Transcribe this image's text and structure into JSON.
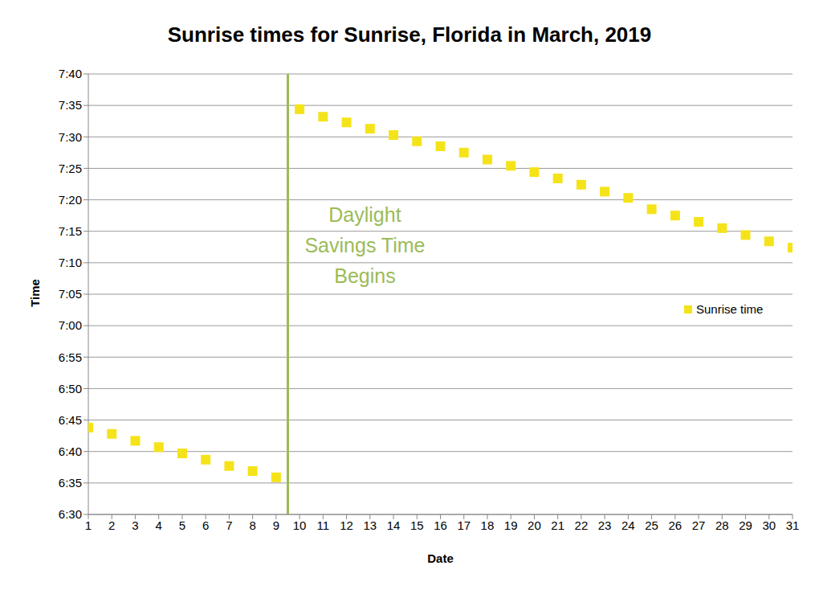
{
  "chart_data": {
    "type": "scatter",
    "title": "Sunrise times for Sunrise, Florida in March, 2019",
    "x_label": "Date",
    "y_label": "Time",
    "x": [
      1,
      2,
      3,
      4,
      5,
      6,
      7,
      8,
      9,
      10,
      11,
      12,
      13,
      14,
      15,
      16,
      17,
      18,
      19,
      20,
      21,
      22,
      23,
      24,
      25,
      26,
      27,
      28,
      29,
      30,
      31
    ],
    "series": [
      {
        "name": "Sunrise time",
        "color": "#f5e31a",
        "marker": "square",
        "values": [
          403.8,
          402.8,
          401.7,
          400.7,
          399.7,
          398.7,
          397.7,
          396.9,
          395.9,
          454.4,
          453.2,
          452.3,
          451.3,
          450.3,
          449.3,
          448.5,
          447.5,
          446.4,
          445.4,
          444.4,
          443.4,
          442.4,
          441.3,
          440.3,
          438.5,
          437.5,
          436.5,
          435.5,
          434.4,
          433.4,
          432.4
        ]
      }
    ],
    "xlim": [
      1,
      31
    ],
    "xticks": [
      1,
      2,
      3,
      4,
      5,
      6,
      7,
      8,
      9,
      10,
      11,
      12,
      13,
      14,
      15,
      16,
      17,
      18,
      19,
      20,
      21,
      22,
      23,
      24,
      25,
      26,
      27,
      28,
      29,
      30,
      31
    ],
    "ylim": [
      390,
      460
    ],
    "yticks": [
      {
        "value": 390,
        "label": "6:30"
      },
      {
        "value": 395,
        "label": "6:35"
      },
      {
        "value": 400,
        "label": "6:40"
      },
      {
        "value": 405,
        "label": "6:45"
      },
      {
        "value": 410,
        "label": "6:50"
      },
      {
        "value": 415,
        "label": "6:55"
      },
      {
        "value": 420,
        "label": "7:00"
      },
      {
        "value": 425,
        "label": "7:05"
      },
      {
        "value": 430,
        "label": "7:10"
      },
      {
        "value": 435,
        "label": "7:15"
      },
      {
        "value": 440,
        "label": "7:20"
      },
      {
        "value": 445,
        "label": "7:25"
      },
      {
        "value": 450,
        "label": "7:30"
      },
      {
        "value": 455,
        "label": "7:35"
      },
      {
        "value": 460,
        "label": "7:40"
      }
    ],
    "grid": true,
    "legend": "right",
    "annotations": [
      {
        "text": [
          "Daylight",
          "Savings Time",
          "Begins"
        ],
        "x": 9.5,
        "color": "#9bbb59"
      }
    ]
  }
}
